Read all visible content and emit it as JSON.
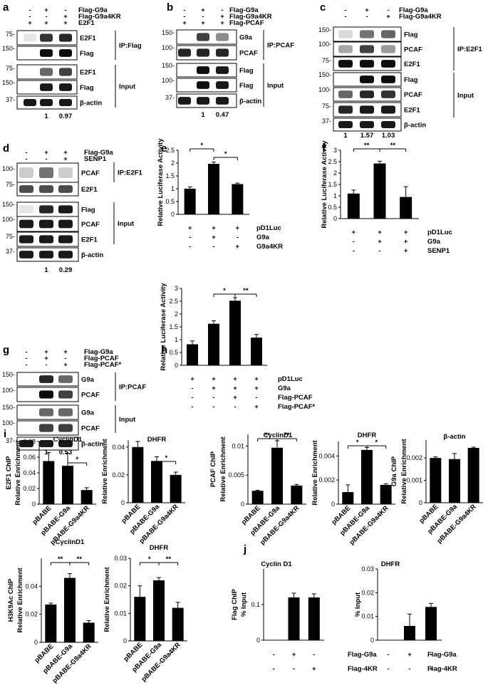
{
  "panels": {
    "a": {
      "letter": "a",
      "rows": [
        [
          "-",
          "+",
          "-",
          "Flag-G9a"
        ],
        [
          "-",
          "-",
          "+",
          "Flag-G9a4KR"
        ],
        [
          "+",
          "+",
          "+",
          "E2F1"
        ]
      ],
      "bands": [
        "E2F1",
        "Flag",
        "E2F1",
        "Flag",
        "β-actin"
      ],
      "mw": [
        "75-",
        "150-",
        "75-",
        "150-",
        "37-"
      ],
      "groups": [
        "IP:Flag",
        "Input"
      ],
      "quant": [
        "1",
        "0.97"
      ]
    },
    "b": {
      "letter": "b",
      "rows": [
        [
          "-",
          "+",
          "-",
          "Flag-G9a"
        ],
        [
          "-",
          "-",
          "+",
          "Flag-G9a4KR"
        ],
        [
          "+",
          "+",
          "+",
          "Flag-PCAF"
        ]
      ],
      "bands": [
        "G9a",
        "PCAF",
        "Flag",
        "Flag",
        "β-actin"
      ],
      "mw": [
        "150-",
        "100-",
        "150-",
        "100-",
        "37-"
      ],
      "groups": [
        "IP:PCAF",
        "Input"
      ],
      "quant": [
        "1",
        "0.47"
      ]
    },
    "c": {
      "letter": "c",
      "rows": [
        [
          "-",
          "+",
          "-",
          "Flag-G9a"
        ],
        [
          "-",
          "-",
          "+",
          "Flag-G9a4KR"
        ]
      ],
      "bands": [
        "Flag",
        "PCAF",
        "E2F1",
        "Flag",
        "PCAF",
        "E2F1",
        "β-actin"
      ],
      "mw": [
        "150-",
        "100-",
        "75-",
        "150-",
        "100-",
        "75-",
        "37-"
      ],
      "groups": [
        "IP:E2F1",
        "Input"
      ],
      "quant": [
        "1",
        "1.57",
        "1.03"
      ]
    },
    "d": {
      "letter": "d",
      "rows": [
        [
          "-",
          "+",
          "+",
          "Flag-G9a"
        ],
        [
          "-",
          "-",
          "+",
          "SENP1"
        ]
      ],
      "bands": [
        "PCAF",
        "E2F1",
        "Flag",
        "PCAF",
        "E2F1",
        "β-actin"
      ],
      "mw": [
        "100-",
        "75-",
        "150-",
        "100-",
        "75-",
        "37-"
      ],
      "groups": [
        "IP:E2F1",
        "Input"
      ],
      "quant": [
        "1",
        "0.29"
      ]
    },
    "g": {
      "letter": "g",
      "rows": [
        [
          "-",
          "+",
          "+",
          "Flag-G9a"
        ],
        [
          "-",
          "+",
          "-",
          "Flag-PCAF"
        ],
        [
          "-",
          "-",
          "+",
          "Flag-PCAF*"
        ]
      ],
      "bands": [
        "G9a",
        "PCAF",
        "G9a",
        "PCAF",
        "β-actin"
      ],
      "mw": [
        "150-",
        "100-",
        "150-",
        "100-",
        "37-"
      ],
      "groups": [
        "IP:PCAF",
        "Input"
      ],
      "quant": [
        "1",
        "0.53"
      ]
    }
  },
  "luciferase": {
    "e": {
      "letter": "e",
      "ylabel": "Relative Luciferase Activity",
      "yticks": [
        "0",
        "0.5",
        "1",
        "1.5",
        "2",
        "2.5"
      ],
      "rows": [
        [
          "+",
          "+",
          "+",
          "pD1Luc"
        ],
        [
          "-",
          "+",
          "-",
          "G9a"
        ],
        [
          "-",
          "-",
          "+",
          "G9a4KR"
        ]
      ],
      "sig": [
        "*",
        "*"
      ]
    },
    "f": {
      "letter": "f",
      "ylabel": "Relative Luciferase Activity",
      "yticks": [
        "0",
        "0.5",
        "1",
        "1.5",
        "2",
        "2.5",
        "3"
      ],
      "rows": [
        [
          "+",
          "+",
          "+",
          "pD1Luc"
        ],
        [
          "-",
          "+",
          "+",
          "G9a"
        ],
        [
          "-",
          "-",
          "+",
          "SENP1"
        ]
      ],
      "sig": [
        "**",
        "**"
      ]
    },
    "h": {
      "letter": "h",
      "ylabel": "Relative Luciferase Activity",
      "yticks": [
        "0",
        "0.5",
        "1",
        "1.5",
        "2",
        "2.5",
        "3"
      ],
      "rows": [
        [
          "+",
          "+",
          "+",
          "+",
          "pD1Luc"
        ],
        [
          "-",
          "+",
          "+",
          "+",
          "G9a"
        ],
        [
          "-",
          "-",
          "+",
          "-",
          "Flag-PCAF"
        ],
        [
          "-",
          "-",
          "-",
          "+",
          "Flag-PCAF*"
        ]
      ],
      "sig": [
        "*",
        "**"
      ]
    }
  },
  "chip": {
    "letter": "i",
    "groups": [
      "pBABE",
      "pBABE-G9a",
      "pBABE-G9a4KR"
    ],
    "charts": [
      {
        "title": "CyclinD1",
        "ylabel1": "E2F1 ChIP",
        "ylabel2": "Relative Enrichment",
        "yticks": [
          "0",
          "0.02",
          "0.04",
          "0.06",
          "0.08"
        ],
        "sig": [
          "*"
        ]
      },
      {
        "title": "DHFR",
        "ylabel1": "",
        "ylabel2": "Relative Enrichment",
        "yticks": [
          "0",
          "0.02",
          "0.04"
        ],
        "sig": [
          "*"
        ]
      },
      {
        "title": "CyclinD1",
        "ylabel1": "PCAF ChIP",
        "ylabel2": "Relative Enrichment",
        "yticks": [
          "0",
          "0.005",
          "0.01"
        ],
        "sig": [
          "**",
          "**"
        ]
      },
      {
        "title": "DHFR",
        "ylabel1": "",
        "ylabel2": "Relative Enrichment",
        "yticks": [
          "0",
          "0.002",
          "0.004"
        ],
        "sig": [
          "*",
          "*"
        ]
      },
      {
        "title": "β-actin",
        "ylabel1": "G9a ChIP",
        "ylabel2": "Relative Enrichment",
        "yticks": [
          "0",
          "0.001",
          "0.002"
        ],
        "sig": []
      },
      {
        "title": "CyclinD1",
        "ylabel1": "H3K9Ac ChIP",
        "ylabel2": "Relative Enrichment",
        "yticks": [
          "0",
          "0.02",
          "0.04"
        ],
        "sig": [
          "**",
          "**"
        ]
      },
      {
        "title": "DHFR",
        "ylabel1": "",
        "ylabel2": "Relative Enrichment",
        "yticks": [
          "0",
          "0.01",
          "0.02",
          "0.03"
        ],
        "sig": [
          "*",
          "**"
        ]
      }
    ]
  },
  "flagchip": {
    "letter": "j",
    "rows": [
      [
        "-",
        "+",
        "-",
        "Flag-G9a"
      ],
      [
        "-",
        "-",
        "+",
        "Flag-4KR"
      ]
    ],
    "charts": [
      {
        "title": "Cyclin D1",
        "ylabel1": "Flag ChIP",
        "ylabel2": "% Input",
        "yticks": [
          "0",
          "0.1"
        ]
      },
      {
        "title": "DHFR",
        "ylabel1": "",
        "ylabel2": "% Input",
        "yticks": [
          "0",
          "0.01",
          "0.02",
          "0.03"
        ]
      }
    ]
  },
  "chart_data": [
    {
      "type": "bar",
      "panel": "e",
      "categories": [
        "pD1Luc",
        "pD1Luc+G9a",
        "pD1Luc+G9a4KR"
      ],
      "values": [
        1.0,
        1.97,
        1.18
      ],
      "errors": [
        0.07,
        0.07,
        0.04
      ],
      "ylim": [
        0,
        2.5
      ],
      "ylabel": "Relative Luciferase Activity"
    },
    {
      "type": "bar",
      "panel": "f",
      "categories": [
        "pD1Luc",
        "pD1Luc+G9a",
        "pD1Luc+G9a+SENP1"
      ],
      "values": [
        1.1,
        2.42,
        0.95
      ],
      "errors": [
        0.15,
        0.1,
        0.45
      ],
      "ylim": [
        0,
        3
      ],
      "ylabel": "Relative Luciferase Activity"
    },
    {
      "type": "bar",
      "panel": "h",
      "categories": [
        "pD1Luc",
        "+G9a",
        "+G9a+Flag-PCAF",
        "+G9a+Flag-PCAF*"
      ],
      "values": [
        0.82,
        1.62,
        2.52,
        1.08
      ],
      "errors": [
        0.13,
        0.12,
        0.12,
        0.12
      ],
      "ylim": [
        0,
        3
      ],
      "ylabel": "Relative Luciferase Activity"
    },
    {
      "type": "bar",
      "panel": "i",
      "title": "CyclinD1",
      "categories": [
        "pBABE",
        "pBABE-G9a",
        "pBABE-G9a4KR"
      ],
      "values": [
        0.055,
        0.049,
        0.018
      ],
      "errors": [
        0.011,
        0.016,
        0.003
      ],
      "ylim": [
        0,
        0.08
      ],
      "ylabel": "E2F1 ChIP Relative Enrichment"
    },
    {
      "type": "bar",
      "panel": "i",
      "title": "DHFR",
      "categories": [
        "pBABE",
        "pBABE-G9a",
        "pBABE-G9a4KR"
      ],
      "values": [
        0.04,
        0.03,
        0.02
      ],
      "errors": [
        0.004,
        0.003,
        0.002
      ],
      "ylim": [
        0,
        0.045
      ],
      "ylabel": "Relative Enrichment"
    },
    {
      "type": "bar",
      "panel": "i",
      "title": "CyclinD1",
      "categories": [
        "pBABE",
        "pBABE-G9a",
        "pBABE-G9a4KR"
      ],
      "values": [
        0.0023,
        0.0097,
        0.0032
      ],
      "errors": [
        0.0001,
        0.0012,
        0.0002
      ],
      "ylim": [
        0,
        0.012
      ],
      "ylabel": "PCAF ChIP Relative Enrichment"
    },
    {
      "type": "bar",
      "panel": "i",
      "title": "DHFR",
      "categories": [
        "pBABE",
        "pBABE-G9a",
        "pBABE-G9a4KR"
      ],
      "values": [
        0.001,
        0.0045,
        0.0016
      ],
      "errors": [
        0.0006,
        0.0002,
        0.0001
      ],
      "ylim": [
        0,
        0.0052
      ],
      "ylabel": "Relative Enrichment"
    },
    {
      "type": "bar",
      "panel": "i",
      "title": "β-actin",
      "categories": [
        "pBABE",
        "pBABE-G9a",
        "pBABE-G9a4KR"
      ],
      "values": [
        0.002,
        0.00195,
        0.00245
      ],
      "errors": [
        5e-05,
        0.00025,
        3e-05
      ],
      "ylim": [
        0,
        0.0028
      ],
      "ylabel": "G9a ChIP Relative Enrichment"
    },
    {
      "type": "bar",
      "panel": "i",
      "title": "CyclinD1",
      "categories": [
        "pBABE",
        "pBABE-G9a",
        "pBABE-G9a4KR"
      ],
      "values": [
        0.027,
        0.046,
        0.014
      ],
      "errors": [
        0.001,
        0.003,
        0.0015
      ],
      "ylim": [
        0,
        0.06
      ],
      "ylabel": "H3K9Ac ChIP Relative Enrichment"
    },
    {
      "type": "bar",
      "panel": "i",
      "title": "DHFR",
      "categories": [
        "pBABE",
        "pBABE-G9a",
        "pBABE-G9a4KR"
      ],
      "values": [
        0.016,
        0.022,
        0.012
      ],
      "errors": [
        0.004,
        0.001,
        0.002
      ],
      "ylim": [
        0,
        0.03
      ],
      "ylabel": "Relative Enrichment"
    },
    {
      "type": "bar",
      "panel": "j",
      "title": "Cyclin D1",
      "categories": [
        "-",
        "Flag-G9a",
        "Flag-4KR"
      ],
      "values": [
        0,
        0.12,
        0.12
      ],
      "errors": [
        0,
        0.012,
        0.01
      ],
      "ylim": [
        0,
        0.2
      ],
      "ylabel": "Flag ChIP % Input"
    },
    {
      "type": "bar",
      "panel": "j",
      "title": "DHFR",
      "categories": [
        "-",
        "Flag-G9a",
        "Flag-4KR"
      ],
      "values": [
        0,
        0.006,
        0.014
      ],
      "errors": [
        0,
        0.005,
        0.0015
      ],
      "ylim": [
        0,
        0.03
      ],
      "ylabel": "% Input"
    }
  ]
}
